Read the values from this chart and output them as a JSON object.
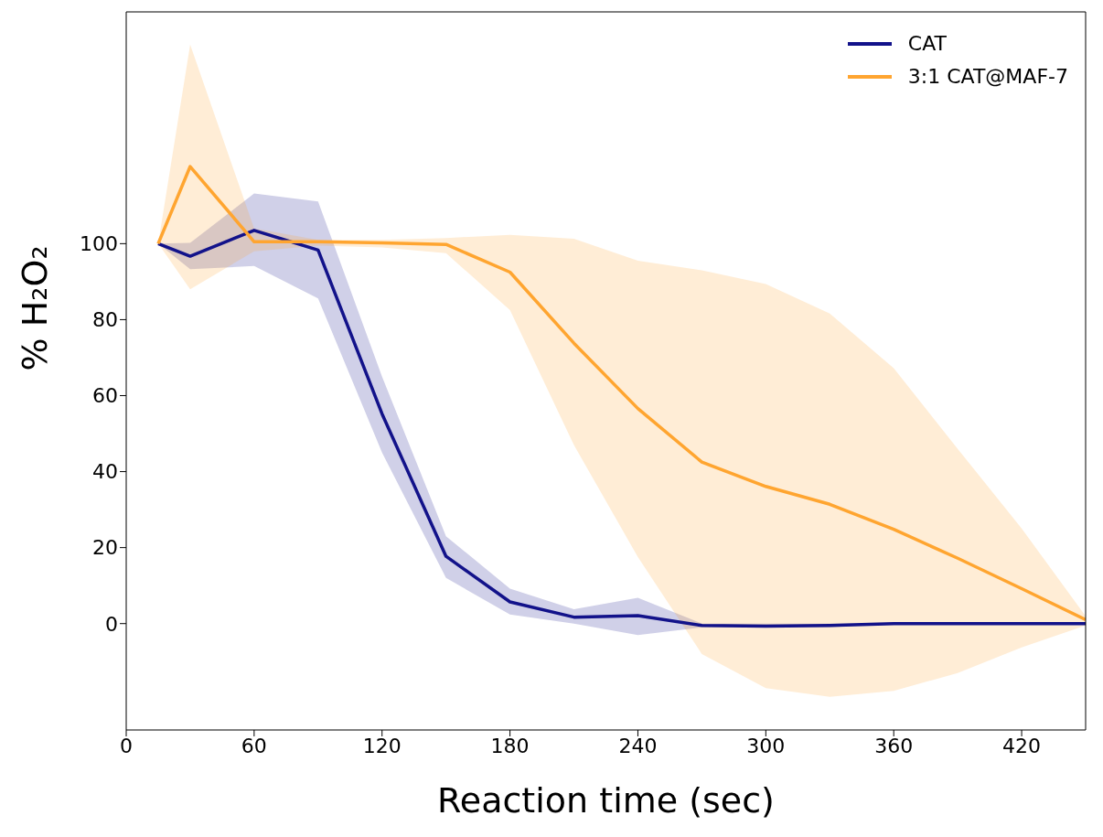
{
  "chart_data": {
    "type": "line",
    "xlabel": "Reaction time (sec)",
    "ylabel": "% H₂O₂",
    "x": [
      15,
      30,
      60,
      90,
      120,
      150,
      180,
      210,
      240,
      270,
      300,
      330,
      360,
      390,
      420,
      450
    ],
    "series": [
      {
        "name": "CAT",
        "color": "#12128a",
        "values": [
          100,
          96.7,
          103.5,
          98.3,
          55.2,
          17.7,
          5.7,
          1.7,
          2.1,
          -0.5,
          -0.7,
          -0.5,
          0,
          0,
          0,
          0
        ],
        "lower": [
          100,
          93.3,
          94.1,
          85.6,
          45,
          12,
          2.4,
          0,
          -3,
          -1,
          -1,
          -1,
          0,
          0,
          0,
          0
        ],
        "upper": [
          100,
          100.2,
          113.2,
          111.1,
          65,
          23,
          9.2,
          3.8,
          6.8,
          0,
          0,
          0,
          0,
          0,
          0,
          0
        ]
      },
      {
        "name": "3:1 CAT@MAF-7",
        "color": "#ffa530",
        "values": [
          100,
          120.3,
          100.5,
          100.5,
          100.2,
          99.8,
          92.5,
          73.8,
          56.6,
          42.5,
          36.1,
          31.4,
          24.8,
          17.2,
          9.2,
          1
        ],
        "lower": [
          100,
          88,
          98,
          99.5,
          99,
          97.5,
          82.5,
          47,
          17.5,
          -8,
          -17,
          -19.3,
          -17.7,
          -13,
          -6.3,
          -0.5
        ],
        "upper": [
          100,
          152.4,
          104,
          101,
          101,
          101.5,
          102.3,
          101.3,
          95.5,
          93,
          89.4,
          81.6,
          67.2,
          46,
          25,
          2
        ]
      }
    ],
    "xlim": [
      0,
      450
    ],
    "xticks": [
      0,
      60,
      120,
      180,
      240,
      300,
      360,
      420
    ],
    "ylim": [
      -28,
      161
    ],
    "yticks": [
      0,
      20,
      40,
      60,
      80,
      100
    ],
    "grid": false,
    "legend": "top right"
  }
}
